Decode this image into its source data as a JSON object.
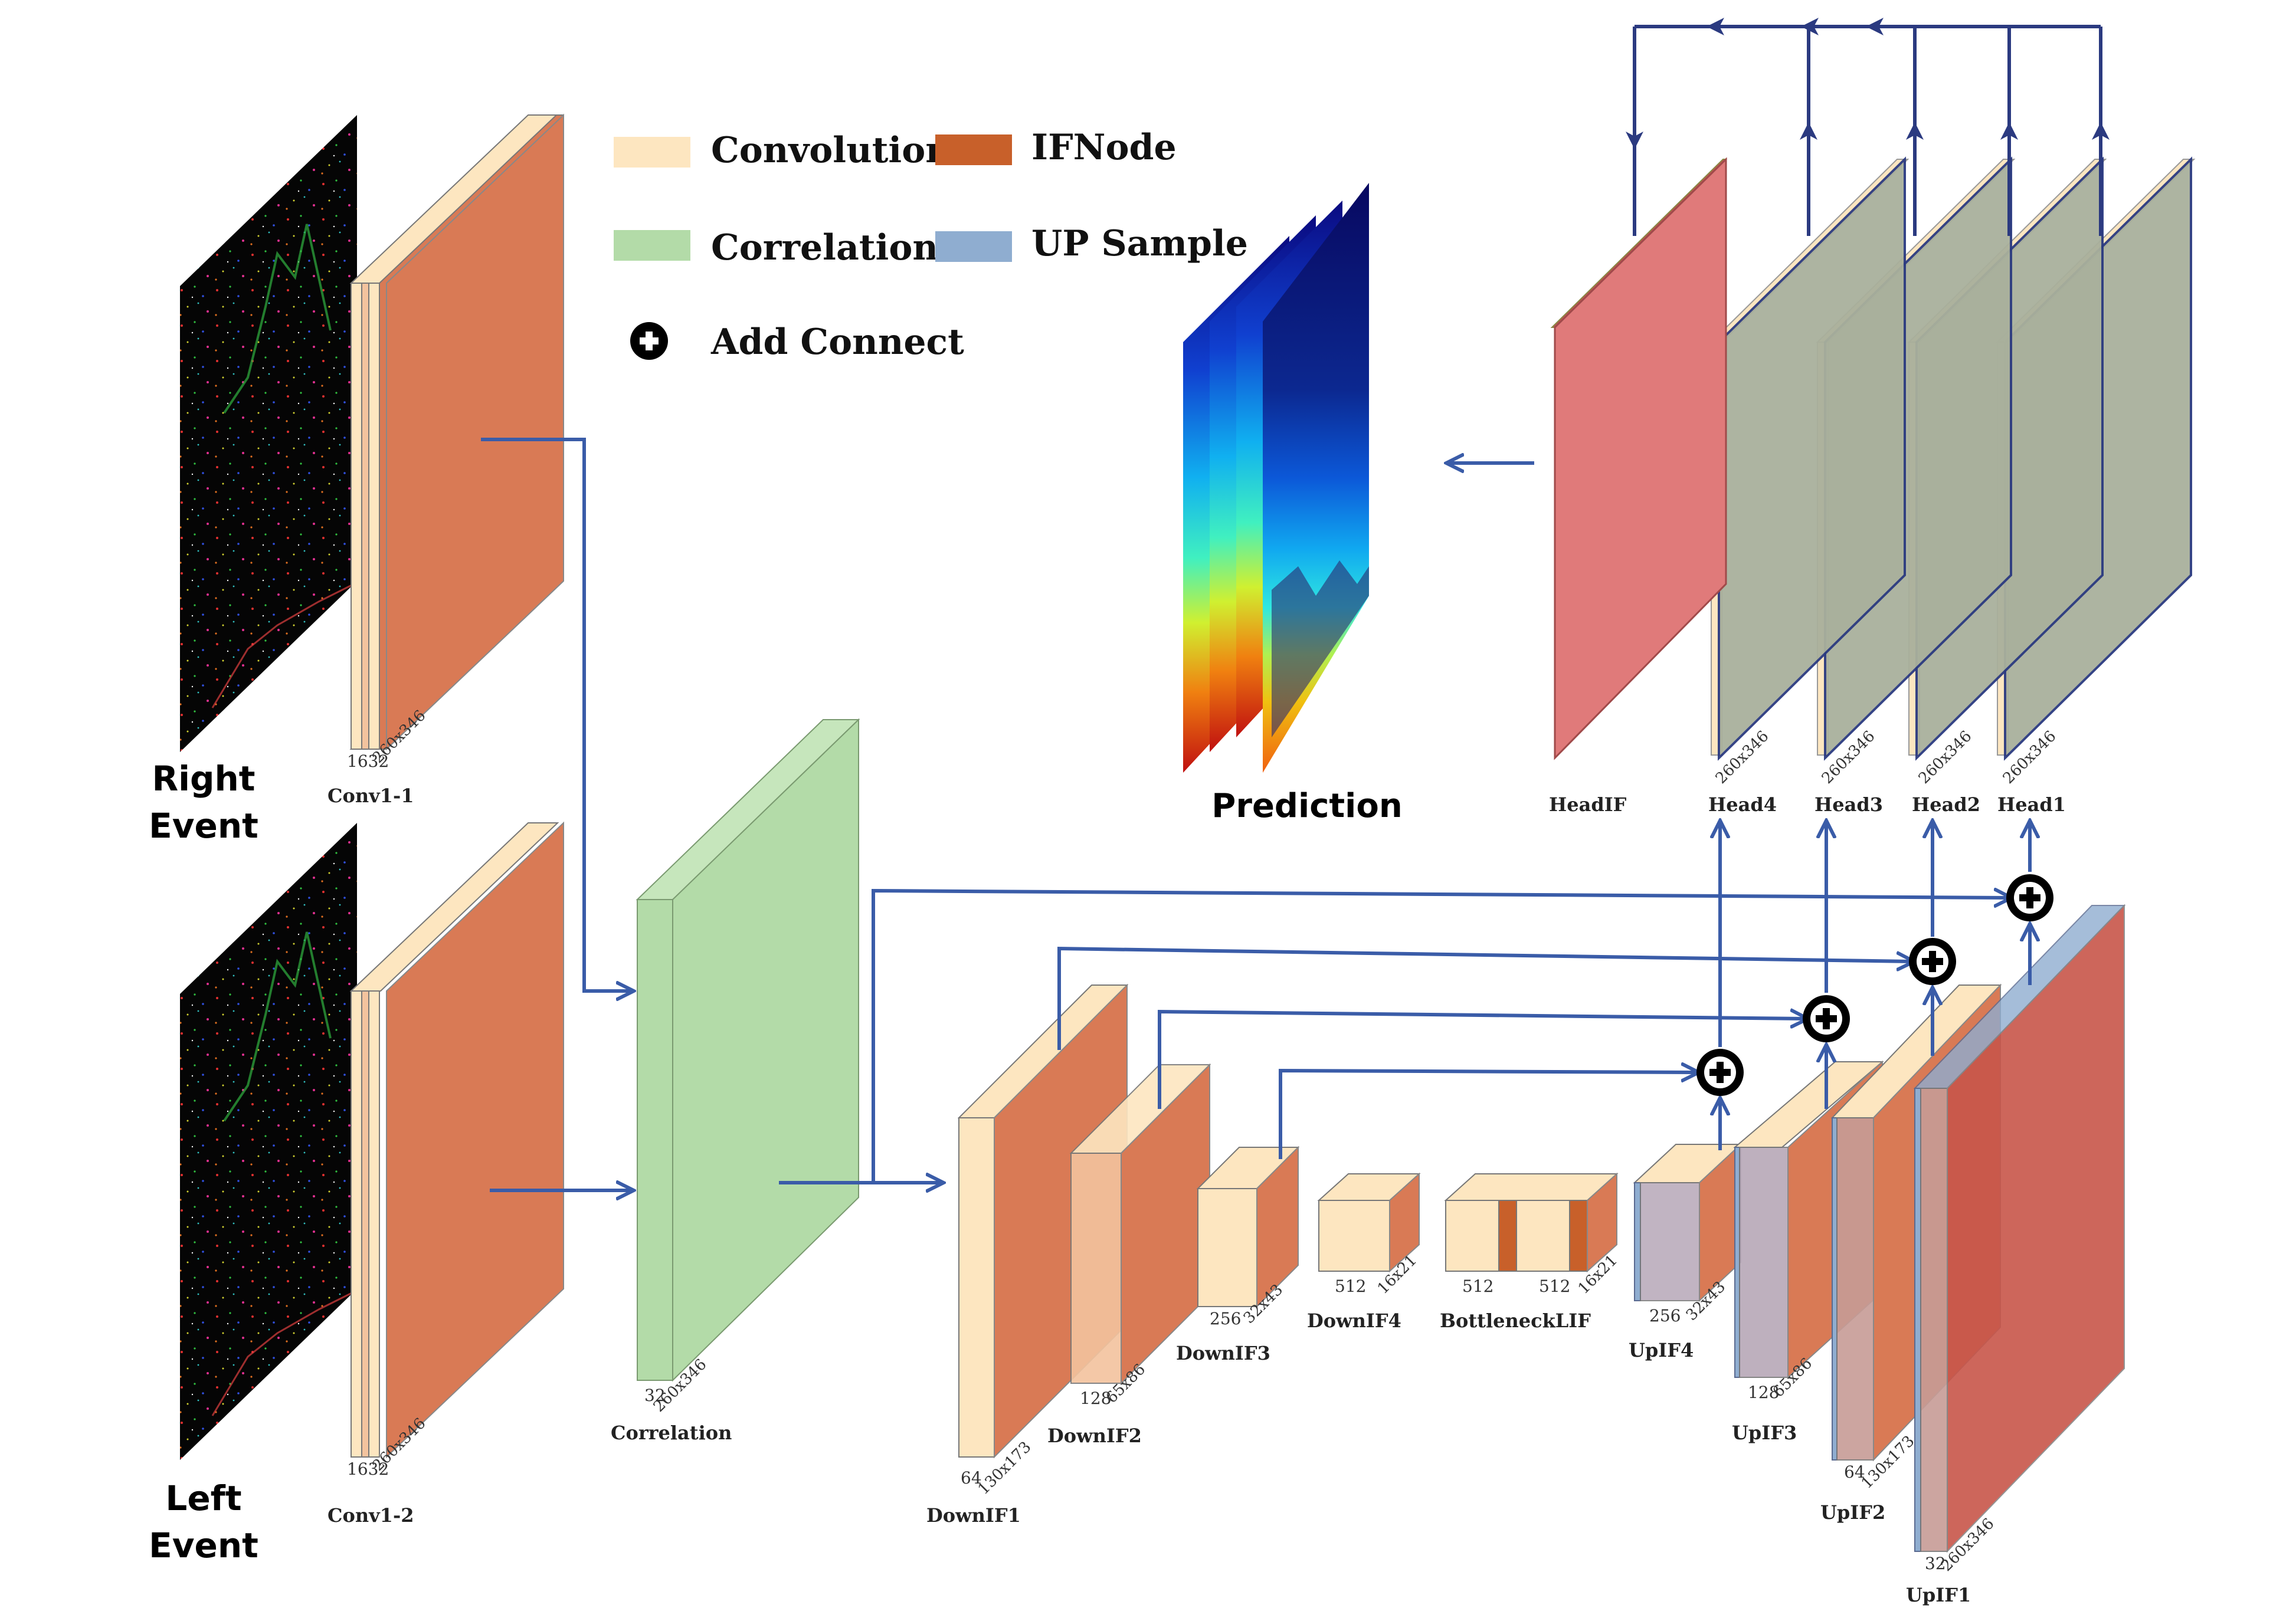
{
  "colors": {
    "convolution": "#fde6c0",
    "ifnode": "#c8602a",
    "ifnode_face": "#d97a55",
    "correlation": "#b3dba8",
    "upsample": "#8fadd0",
    "head": "#e07a7a",
    "head_olive": "#a9b09c",
    "arrow": "#3a5ca8",
    "feedback": "#2b3a80"
  },
  "legend": {
    "convolution": "Convolution",
    "ifnode": "IFNode",
    "correlation": "Correlation",
    "upsample": "UP Sample",
    "add_connect": "Add Connect"
  },
  "inputs": {
    "right_line1": "Right",
    "right_line2": "Event",
    "left_line1": "Left",
    "left_line2": "Event"
  },
  "prediction_label": "Prediction",
  "add_symbol": "⊕",
  "blocks": {
    "conv1_1": {
      "name": "Conv1-1",
      "ch": "1632",
      "size": "260x346"
    },
    "conv1_2": {
      "name": "Conv1-2",
      "ch": "1632",
      "size": "260x346"
    },
    "correlation": {
      "name": "Correlation",
      "ch": "32",
      "size": "260x346"
    },
    "downif1": {
      "name": "DownIF1",
      "ch": "64",
      "size": "130x173"
    },
    "downif2": {
      "name": "DownIF2",
      "ch": "128",
      "size": "65x86"
    },
    "downif3": {
      "name": "DownIF3",
      "ch": "256",
      "size": "32x43"
    },
    "downif4": {
      "name": "DownIF4",
      "ch": "512",
      "size": "16x21"
    },
    "bottleneck": {
      "name": "BottleneckLIF",
      "ch1": "512",
      "ch2": "512",
      "size": "16x21"
    },
    "upif4": {
      "name": "UpIF4",
      "ch": "256",
      "size": "32x43"
    },
    "upif3": {
      "name": "UpIF3",
      "ch": "128",
      "size": "65x86"
    },
    "upif2": {
      "name": "UpIF2",
      "ch": "64",
      "size": "130x173"
    },
    "upif1": {
      "name": "UpIF1",
      "ch": "32",
      "size": "260x346"
    },
    "headif": {
      "name": "HeadIF"
    },
    "head4": {
      "name": "Head4",
      "size": "260x346"
    },
    "head3": {
      "name": "Head3",
      "size": "260x346"
    },
    "head2": {
      "name": "Head2",
      "size": "260x346"
    },
    "head1": {
      "name": "Head1",
      "size": "260x346"
    }
  }
}
